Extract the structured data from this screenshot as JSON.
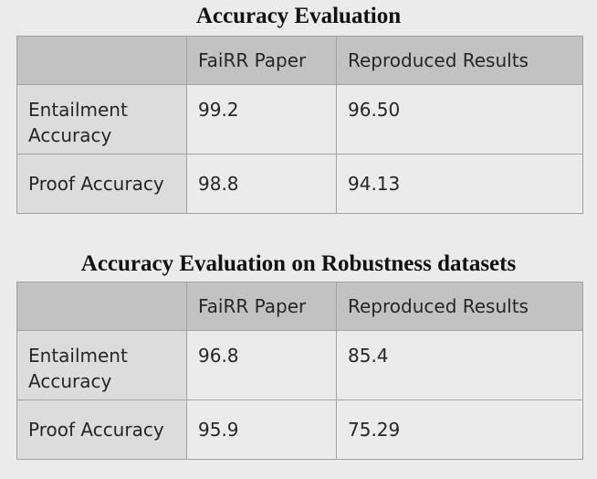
{
  "tables": [
    {
      "title": "Accuracy Evaluation",
      "headers": [
        "",
        "FaiRR Paper",
        "Reproduced Results"
      ],
      "rows": [
        {
          "label": "Entailment Accuracy",
          "paper": "99.2",
          "reproduced": "96.50"
        },
        {
          "label": "Proof Accuracy",
          "paper": "98.8",
          "reproduced": "94.13"
        }
      ]
    },
    {
      "title": "Accuracy Evaluation on Robustness datasets",
      "headers": [
        "",
        "FaiRR Paper",
        "Reproduced Results"
      ],
      "rows": [
        {
          "label": "Entailment Accuracy",
          "paper": "96.8",
          "reproduced": "85.4"
        },
        {
          "label": "Proof Accuracy",
          "paper": "95.9",
          "reproduced": "75.29"
        }
      ]
    }
  ]
}
